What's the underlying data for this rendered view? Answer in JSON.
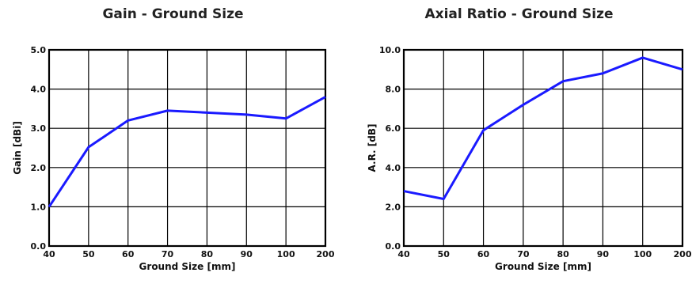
{
  "chart_data": [
    {
      "type": "line",
      "title": "Gain - Ground Size",
      "xlabel": "Ground Size [mm]",
      "ylabel": "Gain [dBi]",
      "categories": [
        "40",
        "50",
        "60",
        "70",
        "80",
        "90",
        "100",
        "200"
      ],
      "yticks": [
        "0.0",
        "1.0",
        "2.0",
        "3.0",
        "4.0",
        "5.0"
      ],
      "ylim": [
        0,
        5
      ],
      "grid": true,
      "line_color": "#1a1aff",
      "series": [
        {
          "values": [
            1.0,
            2.52,
            3.2,
            3.45,
            3.4,
            3.35,
            3.25,
            3.8
          ]
        }
      ]
    },
    {
      "type": "line",
      "title": "Axial Ratio - Ground Size",
      "xlabel": "Ground Size [mm]",
      "ylabel": "A.R. [dB]",
      "categories": [
        "40",
        "50",
        "60",
        "70",
        "80",
        "90",
        "100",
        "200"
      ],
      "yticks": [
        "0.0",
        "2.0",
        "4.0",
        "6.0",
        "8.0",
        "10.0"
      ],
      "ylim": [
        0,
        10
      ],
      "grid": true,
      "line_color": "#1a1aff",
      "series": [
        {
          "values": [
            2.8,
            2.4,
            5.9,
            7.2,
            8.4,
            8.8,
            9.6,
            9.0
          ]
        }
      ]
    }
  ]
}
